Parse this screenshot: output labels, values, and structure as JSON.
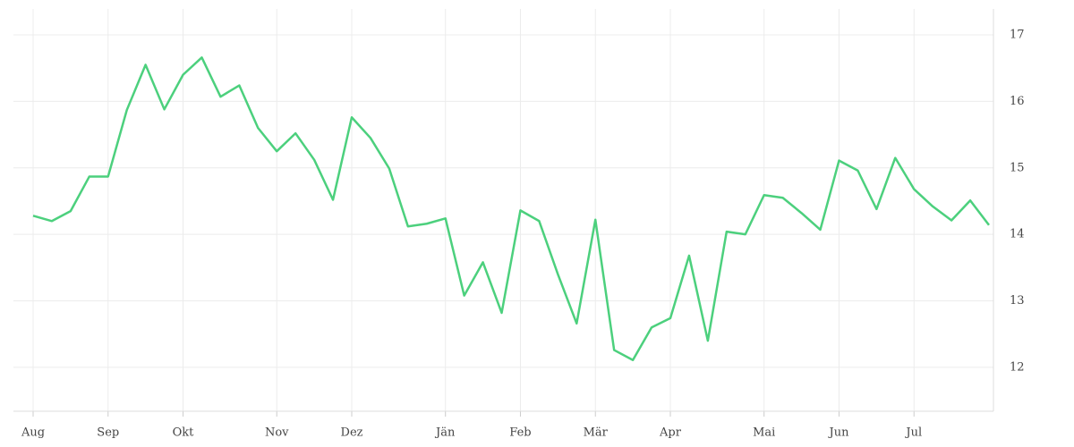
{
  "chart_data": {
    "type": "line",
    "categories": [
      "Aug",
      null,
      null,
      null,
      "Sep",
      null,
      null,
      null,
      "Okt",
      null,
      null,
      null,
      null,
      "Nov",
      null,
      null,
      null,
      "Dez",
      null,
      null,
      null,
      null,
      "Jän",
      null,
      null,
      null,
      "Feb",
      null,
      null,
      null,
      "Mär",
      null,
      null,
      null,
      "Apr",
      null,
      null,
      null,
      null,
      "Mai",
      null,
      null,
      null,
      "Jun",
      null,
      null,
      null,
      "Jul",
      null,
      null,
      null,
      null
    ],
    "series": [
      {
        "color": "#4cd07d",
        "values": [
          14.28,
          14.2,
          14.35,
          14.87,
          14.87,
          15.87,
          16.55,
          15.88,
          16.4,
          16.66,
          16.07,
          16.24,
          15.6,
          15.25,
          15.52,
          15.12,
          14.52,
          15.76,
          15.45,
          14.99,
          14.12,
          14.16,
          14.24,
          13.08,
          13.58,
          12.82,
          14.36,
          14.2,
          13.4,
          12.66,
          14.22,
          12.26,
          12.11,
          12.6,
          12.74,
          13.68,
          12.4,
          14.04,
          14.0,
          14.59,
          14.55,
          14.32,
          14.07,
          15.11,
          14.96,
          14.38,
          15.15,
          14.68,
          14.42,
          14.21,
          14.51,
          14.14
        ]
      }
    ],
    "ylim": [
      11.34,
      17.39
    ],
    "yticks": [
      12,
      13,
      14,
      15,
      16,
      17
    ],
    "y_axis_side": "right",
    "grid": true
  }
}
